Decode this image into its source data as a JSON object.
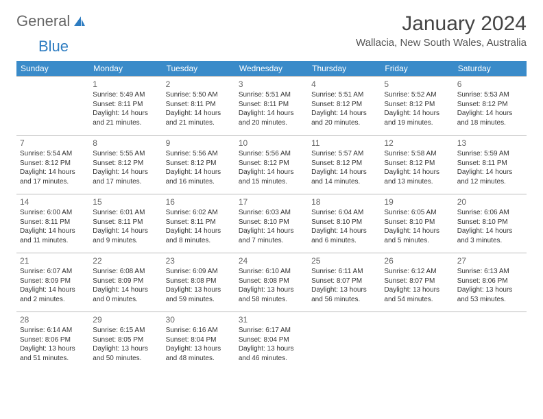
{
  "brand": {
    "name1": "General",
    "name2": "Blue"
  },
  "title": "January 2024",
  "location": "Wallacia, New South Wales, Australia",
  "colors": {
    "header_bg": "#3a8bc9",
    "header_text": "#ffffff",
    "border": "#bbbbbb",
    "text": "#333333",
    "title": "#444444",
    "brand_gray": "#666666",
    "brand_blue": "#2d7cc1",
    "background": "#ffffff"
  },
  "weekday_labels": [
    "Sunday",
    "Monday",
    "Tuesday",
    "Wednesday",
    "Thursday",
    "Friday",
    "Saturday"
  ],
  "weeks": [
    [
      null,
      {
        "n": "1",
        "sunrise": "5:49 AM",
        "sunset": "8:11 PM",
        "dl": "14 hours and 21 minutes."
      },
      {
        "n": "2",
        "sunrise": "5:50 AM",
        "sunset": "8:11 PM",
        "dl": "14 hours and 21 minutes."
      },
      {
        "n": "3",
        "sunrise": "5:51 AM",
        "sunset": "8:11 PM",
        "dl": "14 hours and 20 minutes."
      },
      {
        "n": "4",
        "sunrise": "5:51 AM",
        "sunset": "8:12 PM",
        "dl": "14 hours and 20 minutes."
      },
      {
        "n": "5",
        "sunrise": "5:52 AM",
        "sunset": "8:12 PM",
        "dl": "14 hours and 19 minutes."
      },
      {
        "n": "6",
        "sunrise": "5:53 AM",
        "sunset": "8:12 PM",
        "dl": "14 hours and 18 minutes."
      }
    ],
    [
      {
        "n": "7",
        "sunrise": "5:54 AM",
        "sunset": "8:12 PM",
        "dl": "14 hours and 17 minutes."
      },
      {
        "n": "8",
        "sunrise": "5:55 AM",
        "sunset": "8:12 PM",
        "dl": "14 hours and 17 minutes."
      },
      {
        "n": "9",
        "sunrise": "5:56 AM",
        "sunset": "8:12 PM",
        "dl": "14 hours and 16 minutes."
      },
      {
        "n": "10",
        "sunrise": "5:56 AM",
        "sunset": "8:12 PM",
        "dl": "14 hours and 15 minutes."
      },
      {
        "n": "11",
        "sunrise": "5:57 AM",
        "sunset": "8:12 PM",
        "dl": "14 hours and 14 minutes."
      },
      {
        "n": "12",
        "sunrise": "5:58 AM",
        "sunset": "8:12 PM",
        "dl": "14 hours and 13 minutes."
      },
      {
        "n": "13",
        "sunrise": "5:59 AM",
        "sunset": "8:11 PM",
        "dl": "14 hours and 12 minutes."
      }
    ],
    [
      {
        "n": "14",
        "sunrise": "6:00 AM",
        "sunset": "8:11 PM",
        "dl": "14 hours and 11 minutes."
      },
      {
        "n": "15",
        "sunrise": "6:01 AM",
        "sunset": "8:11 PM",
        "dl": "14 hours and 9 minutes."
      },
      {
        "n": "16",
        "sunrise": "6:02 AM",
        "sunset": "8:11 PM",
        "dl": "14 hours and 8 minutes."
      },
      {
        "n": "17",
        "sunrise": "6:03 AM",
        "sunset": "8:10 PM",
        "dl": "14 hours and 7 minutes."
      },
      {
        "n": "18",
        "sunrise": "6:04 AM",
        "sunset": "8:10 PM",
        "dl": "14 hours and 6 minutes."
      },
      {
        "n": "19",
        "sunrise": "6:05 AM",
        "sunset": "8:10 PM",
        "dl": "14 hours and 5 minutes."
      },
      {
        "n": "20",
        "sunrise": "6:06 AM",
        "sunset": "8:10 PM",
        "dl": "14 hours and 3 minutes."
      }
    ],
    [
      {
        "n": "21",
        "sunrise": "6:07 AM",
        "sunset": "8:09 PM",
        "dl": "14 hours and 2 minutes."
      },
      {
        "n": "22",
        "sunrise": "6:08 AM",
        "sunset": "8:09 PM",
        "dl": "14 hours and 0 minutes."
      },
      {
        "n": "23",
        "sunrise": "6:09 AM",
        "sunset": "8:08 PM",
        "dl": "13 hours and 59 minutes."
      },
      {
        "n": "24",
        "sunrise": "6:10 AM",
        "sunset": "8:08 PM",
        "dl": "13 hours and 58 minutes."
      },
      {
        "n": "25",
        "sunrise": "6:11 AM",
        "sunset": "8:07 PM",
        "dl": "13 hours and 56 minutes."
      },
      {
        "n": "26",
        "sunrise": "6:12 AM",
        "sunset": "8:07 PM",
        "dl": "13 hours and 54 minutes."
      },
      {
        "n": "27",
        "sunrise": "6:13 AM",
        "sunset": "8:06 PM",
        "dl": "13 hours and 53 minutes."
      }
    ],
    [
      {
        "n": "28",
        "sunrise": "6:14 AM",
        "sunset": "8:06 PM",
        "dl": "13 hours and 51 minutes."
      },
      {
        "n": "29",
        "sunrise": "6:15 AM",
        "sunset": "8:05 PM",
        "dl": "13 hours and 50 minutes."
      },
      {
        "n": "30",
        "sunrise": "6:16 AM",
        "sunset": "8:04 PM",
        "dl": "13 hours and 48 minutes."
      },
      {
        "n": "31",
        "sunrise": "6:17 AM",
        "sunset": "8:04 PM",
        "dl": "13 hours and 46 minutes."
      },
      null,
      null,
      null
    ]
  ],
  "labels": {
    "sunrise": "Sunrise: ",
    "sunset": "Sunset: ",
    "daylight": "Daylight: "
  }
}
